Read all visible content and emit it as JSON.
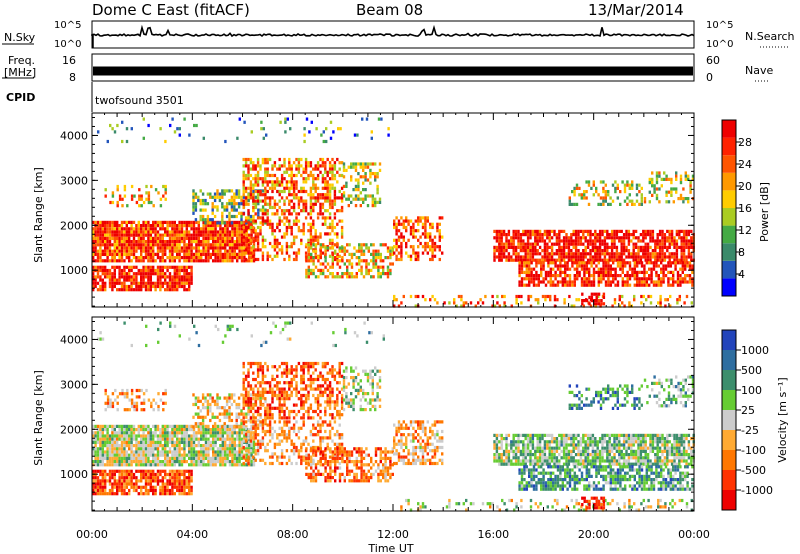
{
  "header": {
    "station": "Dome C East (fitACF)",
    "beam": "Beam 08",
    "date": "13/Mar/2014"
  },
  "status_panels": {
    "nsky_label": "N.Sky",
    "nsky_ticks": [
      "10^5",
      "10^0"
    ],
    "nsearch_label": "N.Search",
    "freq_label_1": "Freq.",
    "freq_label_2": "[MHz]",
    "freq_ticks": [
      "16",
      "8"
    ],
    "nave_ticks": [
      "60",
      "0"
    ],
    "nave_label": "Nave",
    "cpid_label": "CPID",
    "cpid_value": "twofsound 3501"
  },
  "chart_data": [
    {
      "type": "heatmap",
      "name": "power",
      "ylabel": "Slant Range [km]",
      "xlabel": "",
      "y_ticks": [
        "1000",
        "2000",
        "3000",
        "4000"
      ],
      "ylim": [
        180,
        4500
      ],
      "xlim": [
        0,
        24
      ],
      "colorbar": {
        "label": "Power [dB]",
        "ticks": [
          "4",
          "8",
          "12",
          "16",
          "20",
          "24",
          "28"
        ],
        "range": [
          0,
          32
        ],
        "colors": [
          "#0000ff",
          "#2255bb",
          "#3a8a6a",
          "#44aa44",
          "#aacc22",
          "#ffcc00",
          "#ff9900",
          "#ff5500",
          "#ff2200",
          "#ee0000"
        ]
      }
    },
    {
      "type": "heatmap",
      "name": "velocity",
      "ylabel": "Slant Range [km]",
      "xlabel": "Time UT",
      "x_ticks": [
        "00:00",
        "04:00",
        "08:00",
        "12:00",
        "16:00",
        "20:00",
        "00:00"
      ],
      "y_ticks": [
        "1000",
        "2000",
        "3000",
        "4000"
      ],
      "ylim": [
        180,
        4500
      ],
      "xlim": [
        0,
        24
      ],
      "colorbar": {
        "label": "Velocity [m s⁻¹]",
        "ticks": [
          "1000",
          "500",
          "100",
          "25",
          "-25",
          "-100",
          "-500",
          "-1000"
        ],
        "colors": [
          "#2244bb",
          "#2e6ea0",
          "#3c8e6c",
          "#66cc33",
          "#cccccc",
          "#ffaa33",
          "#ff7700",
          "#ff3300",
          "#ee0000"
        ]
      }
    }
  ]
}
